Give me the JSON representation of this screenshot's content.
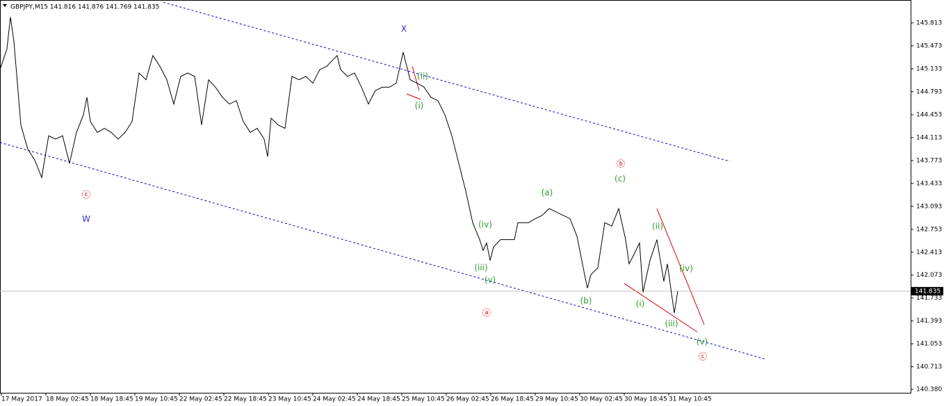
{
  "chart_data": {
    "type": "line",
    "title": "GBPJPY,M15  141.816 141.876 141.769 141.835",
    "x": [
      0,
      10,
      15,
      20,
      30,
      40,
      50,
      60,
      70,
      80,
      90,
      100,
      110,
      120,
      125,
      130,
      140,
      150,
      160,
      170,
      180,
      190,
      200,
      210,
      220,
      230,
      240,
      250,
      260,
      270,
      280,
      290,
      300,
      310,
      320,
      330,
      340,
      350,
      360,
      370,
      380,
      385,
      390,
      400,
      410,
      420,
      430,
      440,
      450,
      460,
      470,
      485,
      490,
      500,
      510,
      520,
      530,
      540,
      550,
      560,
      570,
      580,
      590,
      600,
      610,
      620,
      630,
      640,
      650,
      660,
      670,
      680,
      690,
      695,
      700,
      705,
      710,
      720,
      730,
      740,
      745,
      760,
      770,
      780,
      790,
      800,
      810,
      820,
      830,
      840,
      845,
      850,
      860,
      870,
      880,
      890,
      900,
      905,
      910,
      920,
      925,
      935,
      945,
      955,
      960,
      970,
      975
    ],
    "series": [
      {
        "name": "GBPJPY",
        "color": "#000000",
        "values": [
          145.12,
          145.43,
          145.9,
          145.54,
          144.3,
          143.94,
          143.78,
          143.52,
          144.14,
          144.09,
          144.14,
          143.73,
          144.19,
          144.45,
          144.71,
          144.35,
          144.19,
          144.25,
          144.19,
          144.09,
          144.19,
          144.35,
          145.07,
          144.97,
          145.33,
          145.17,
          144.97,
          144.61,
          145.02,
          145.07,
          145.02,
          144.3,
          144.97,
          144.86,
          144.71,
          144.61,
          144.66,
          144.35,
          144.19,
          144.25,
          144.09,
          143.83,
          144.4,
          144.3,
          144.25,
          145.02,
          144.97,
          145.02,
          144.92,
          145.12,
          145.17,
          145.33,
          145.12,
          145.02,
          145.07,
          144.86,
          144.61,
          144.81,
          144.86,
          144.86,
          144.92,
          145.38,
          144.97,
          144.92,
          144.86,
          144.71,
          144.66,
          144.45,
          144.14,
          143.73,
          143.32,
          142.85,
          142.6,
          142.44,
          142.55,
          142.29,
          142.49,
          142.6,
          142.6,
          142.6,
          142.85,
          142.85,
          142.91,
          142.96,
          143.06,
          143.01,
          142.96,
          142.91,
          142.65,
          142.13,
          141.88,
          142.08,
          142.18,
          142.85,
          142.8,
          143.06,
          142.6,
          142.24,
          142.34,
          142.55,
          141.82,
          142.29,
          142.6,
          141.98,
          142.24,
          141.51,
          141.835
        ]
      }
    ],
    "current_price": {
      "value": 141.835,
      "label": "141.835"
    },
    "xlim": [
      0,
      1310
    ],
    "xticks": [
      {
        "value": 2,
        "label": "17 May 2017"
      },
      {
        "value": 66,
        "label": "18 May 02:45"
      },
      {
        "value": 130,
        "label": "18 May 18:45"
      },
      {
        "value": 194,
        "label": "19 May 10:45"
      },
      {
        "value": 258,
        "label": "22 May 02:45"
      },
      {
        "value": 322,
        "label": "22 May 18:45"
      },
      {
        "value": 386,
        "label": "23 May 10:45"
      },
      {
        "value": 450,
        "label": "24 May 02:45"
      },
      {
        "value": 514,
        "label": "24 May 18:45"
      },
      {
        "value": 578,
        "label": "25 May 10:45"
      },
      {
        "value": 642,
        "label": "26 May 02:45"
      },
      {
        "value": 706,
        "label": "26 May 18:45"
      },
      {
        "value": 770,
        "label": "29 May 10:45"
      },
      {
        "value": 834,
        "label": "30 May 02:45"
      },
      {
        "value": 898,
        "label": "30 May 18:45"
      },
      {
        "value": 962,
        "label": "31 May 10:45"
      }
    ],
    "ylim": [
      140.328,
      146.153
    ],
    "yticks": [
      145.813,
      145.473,
      145.133,
      144.793,
      144.453,
      144.113,
      143.773,
      143.433,
      143.093,
      142.753,
      142.413,
      142.073,
      141.733,
      141.393,
      141.053,
      140.713,
      {
        "value": 140.38,
        "label": "140.380"
      }
    ],
    "lines": [
      {
        "color": "#0000cc",
        "dashed": true,
        "x": [
          235,
          1050
        ],
        "y": [
          146.12,
          143.76
        ]
      },
      {
        "color": "#0000cc",
        "dashed": true,
        "x": [
          0,
          1100
        ],
        "y": [
          144.04,
          140.83
        ]
      },
      {
        "color": "#dd0000",
        "dashed": false,
        "x": [
          945,
          1013
        ],
        "y": [
          143.06,
          141.34
        ]
      },
      {
        "color": "#dd0000",
        "dashed": false,
        "x": [
          898,
          1003
        ],
        "y": [
          141.95,
          141.23
        ]
      },
      {
        "color": "#dd0000",
        "dashed": false,
        "x": [
          593,
          603
        ],
        "y": [
          145.17,
          144.81
        ]
      },
      {
        "color": "#dd0000",
        "dashed": false,
        "x": [
          585,
          605
        ],
        "y": [
          144.76,
          144.68
        ]
      }
    ],
    "annotations": [
      {
        "text": "X",
        "x": 581,
        "y": 145.72,
        "color": "#3333cc"
      },
      {
        "text": "W",
        "x": 124,
        "y": 142.9,
        "color": "#3333cc"
      },
      {
        "text": "ⓒ",
        "x": 124,
        "y": 143.26,
        "color": "#dd0000"
      },
      {
        "text": "(i)",
        "x": 603,
        "y": 144.58,
        "color": "#339933"
      },
      {
        "text": "(ii)",
        "x": 608,
        "y": 145.02,
        "color": "#339933"
      },
      {
        "text": "(iv)",
        "x": 698,
        "y": 142.82,
        "color": "#339933"
      },
      {
        "text": "(iii)",
        "x": 692,
        "y": 142.18,
        "color": "#339933"
      },
      {
        "text": "(v)",
        "x": 705,
        "y": 142.0,
        "color": "#339933"
      },
      {
        "text": "ⓐ",
        "x": 700,
        "y": 141.51,
        "color": "#dd0000"
      },
      {
        "text": "(a)",
        "x": 787,
        "y": 143.29,
        "color": "#339933"
      },
      {
        "text": "(b)",
        "x": 843,
        "y": 141.69,
        "color": "#339933"
      },
      {
        "text": "ⓑ",
        "x": 893,
        "y": 143.72,
        "color": "#dd0000"
      },
      {
        "text": "(c)",
        "x": 892,
        "y": 143.5,
        "color": "#339933"
      },
      {
        "text": "(ii)",
        "x": 946,
        "y": 142.79,
        "color": "#339933"
      },
      {
        "text": "(i)",
        "x": 921,
        "y": 141.64,
        "color": "#339933"
      },
      {
        "text": "(iv)",
        "x": 987,
        "y": 142.17,
        "color": "#339933"
      },
      {
        "text": "(iii)",
        "x": 966,
        "y": 141.35,
        "color": "#339933"
      },
      {
        "text": "(v)",
        "x": 1010,
        "y": 141.08,
        "color": "#339933"
      },
      {
        "text": "ⓒ",
        "x": 1011,
        "y": 140.86,
        "color": "#dd0000"
      }
    ]
  }
}
